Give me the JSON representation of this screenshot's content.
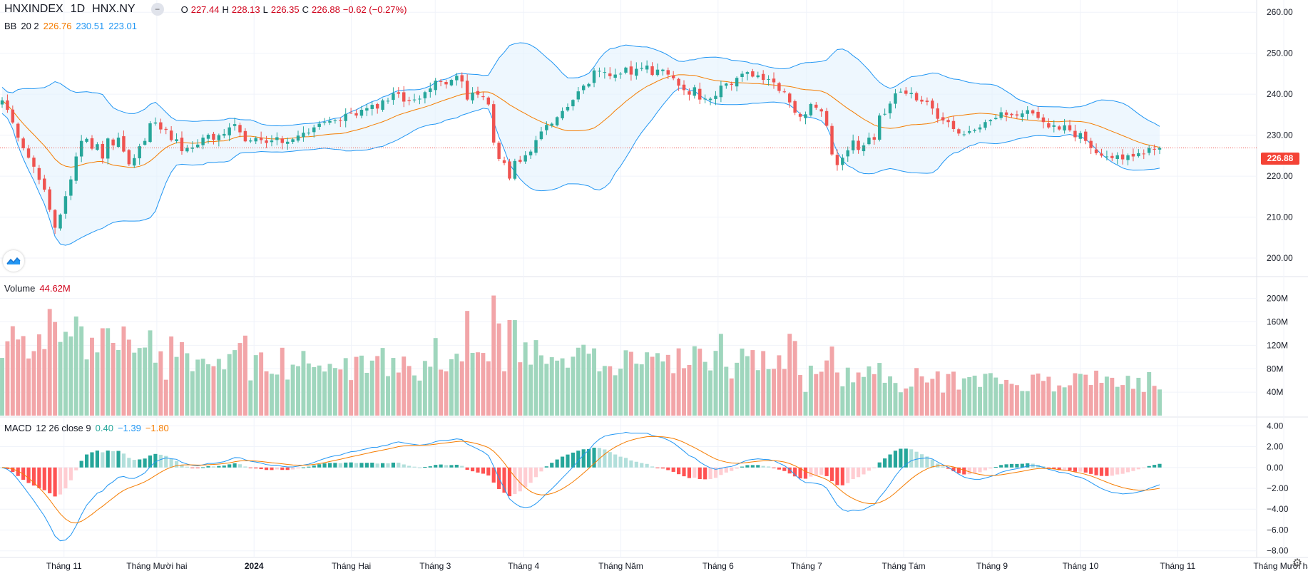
{
  "header": {
    "symbol": "HNXINDEX",
    "interval": "1D",
    "exchange": "HNX.NY",
    "ohlc": {
      "o_label": "O",
      "o_value": "227.44",
      "h_label": "H",
      "h_value": "228.13",
      "l_label": "L",
      "l_value": "226.35",
      "c_label": "C",
      "c_value": "226.88",
      "change": "−0.62 (−0.27%)"
    }
  },
  "indicators": {
    "bb": {
      "name": "BB",
      "params": "20 2",
      "basis": "226.76",
      "upper": "230.51",
      "lower": "223.01"
    },
    "volume": {
      "name": "Volume",
      "value": "44.62M"
    },
    "macd": {
      "name": "MACD",
      "params": "12 26 close 9",
      "hist": "0.40",
      "macd": "−1.39",
      "signal": "−1.80"
    }
  },
  "last_price_tag": "226.88",
  "colors": {
    "up": "#26a69a",
    "down": "#ef5350",
    "basis": "#f57c00",
    "band": "#2196f3",
    "band_fill": "#e3f2fd",
    "vol_up": "#9fd6bd",
    "vol_down": "#f2a5a8"
  },
  "icons": {
    "logo": "tradingview-logo-icon",
    "settings": "gear-icon",
    "collapse": "minus-icon"
  },
  "chart_data": [
    {
      "type": "candlestick",
      "title": "HNXINDEX",
      "ylim": [
        196,
        263
      ],
      "y_ticks": [
        "260.00",
        "250.00",
        "240.00",
        "230.00",
        "220.00",
        "210.00",
        "200.00"
      ],
      "x_ticks": [
        "Tháng 11",
        "Tháng Mười hai",
        "2024",
        "Tháng Hai",
        "Tháng 3",
        "Tháng 4",
        "Tháng Năm",
        "Tháng 6",
        "Tháng 7",
        "Tháng Tám",
        "Tháng 9",
        "Tháng 10",
        "Tháng 11",
        "Tháng Mười hai"
      ],
      "close_series": [
        238.5,
        236.2,
        233.1,
        229.4,
        226.8,
        224.5,
        222.3,
        219.1,
        216.7,
        211.8,
        207.4,
        210.6,
        215.1,
        219.2,
        224.8,
        228.6,
        229.1,
        226.7,
        227.8,
        224.3,
        229.2,
        227.5,
        229.4,
        226.0,
        222.9,
        224.4,
        227.3,
        228.6,
        232.9,
        233.1,
        231.4,
        231.3,
        228.8,
        229.0,
        226.1,
        226.9,
        227.0,
        227.7,
        229.4,
        230.1,
        228.9,
        230.0,
        230.3,
        231.9,
        232.7,
        230.7,
        228.5,
        228.7,
        229.3,
        228.8,
        228.1,
        228.7,
        229.5,
        228.1,
        228.4,
        229.0,
        229.9,
        230.6,
        230.6,
        231.9,
        232.8,
        233.2,
        233.5,
        233.6,
        233.5,
        235.2,
        235.4,
        234.8,
        236.2,
        236.6,
        237.4,
        236.5,
        238.5,
        238.4,
        240.2,
        240.1,
        238.2,
        238.3,
        238.7,
        238.9,
        240.5,
        241.4,
        243.3,
        243.1,
        242.4,
        243.5,
        244.5,
        243.1,
        238.7,
        240.4,
        239.9,
        239.3,
        237.5,
        228.2,
        224.2,
        223.2,
        219.4,
        223.7,
        223.5,
        225.1,
        226.0,
        228.8,
        230.9,
        232.5,
        232.8,
        234.4,
        235.9,
        236.9,
        238.6,
        240.7,
        242.1,
        242.5,
        245.8,
        245.7,
        245.4,
        244.4,
        244.8,
        245.0,
        246.5,
        244.8,
        246.2,
        246.4,
        247.0,
        244.7,
        246.0,
        246.0,
        244.8,
        243.9,
        242.1,
        241.0,
        239.9,
        241.7,
        238.7,
        238.9,
        238.9,
        239.6,
        242.1,
        242.6,
        242.3,
        244.0,
        245.0,
        245.4,
        244.3,
        244.6,
        243.5,
        243.7,
        242.9,
        240.8,
        240.5,
        238.0,
        235.5,
        234.5,
        235.1,
        237.6,
        236.7,
        235.8,
        232.3,
        225.3,
        222.7,
        224.5,
        226.3,
        228.7,
        226.4,
        227.5,
        229.4,
        228.9,
        234.8,
        235.2,
        237.7,
        240.2,
        240.6,
        240.1,
        240.3,
        238.5,
        238.2,
        238.1,
        236.5,
        234.0,
        233.6,
        233.2,
        231.5,
        230.4,
        230.2,
        231.0,
        231.3,
        231.9,
        233.2,
        233.7,
        234.2,
        235.6,
        234.9,
        234.9,
        234.8,
        235.3,
        236.1,
        235.3,
        234.2,
        233.2,
        231.9,
        232.4,
        231.4,
        232.4,
        231.2,
        229.5,
        230.5,
        228.6,
        226.9,
        225.6,
        225.0,
        224.8,
        224.4,
        225.1,
        224.1,
        225.1,
        224.8,
        225.6,
        225.4,
        226.9,
        226.6,
        226.9
      ]
    },
    {
      "type": "line",
      "title": "BB 20 2",
      "series": [
        {
          "name": "Basis",
          "values": "derived from close_series (SMA20)"
        }
      ]
    },
    {
      "type": "bar",
      "title": "Volume",
      "ylim": [
        0,
        230
      ],
      "y_ticks": [
        "200M",
        "160M",
        "120M",
        "80M",
        "40M"
      ],
      "unit": "M",
      "last_value": 44.62
    },
    {
      "type": "line",
      "title": "MACD 12 26 close 9",
      "ylim": [
        -8.5,
        4.5
      ],
      "y_ticks": [
        "4.00",
        "2.00",
        "0.00",
        "−2.00",
        "−4.00",
        "−6.00",
        "−8.00"
      ]
    }
  ]
}
